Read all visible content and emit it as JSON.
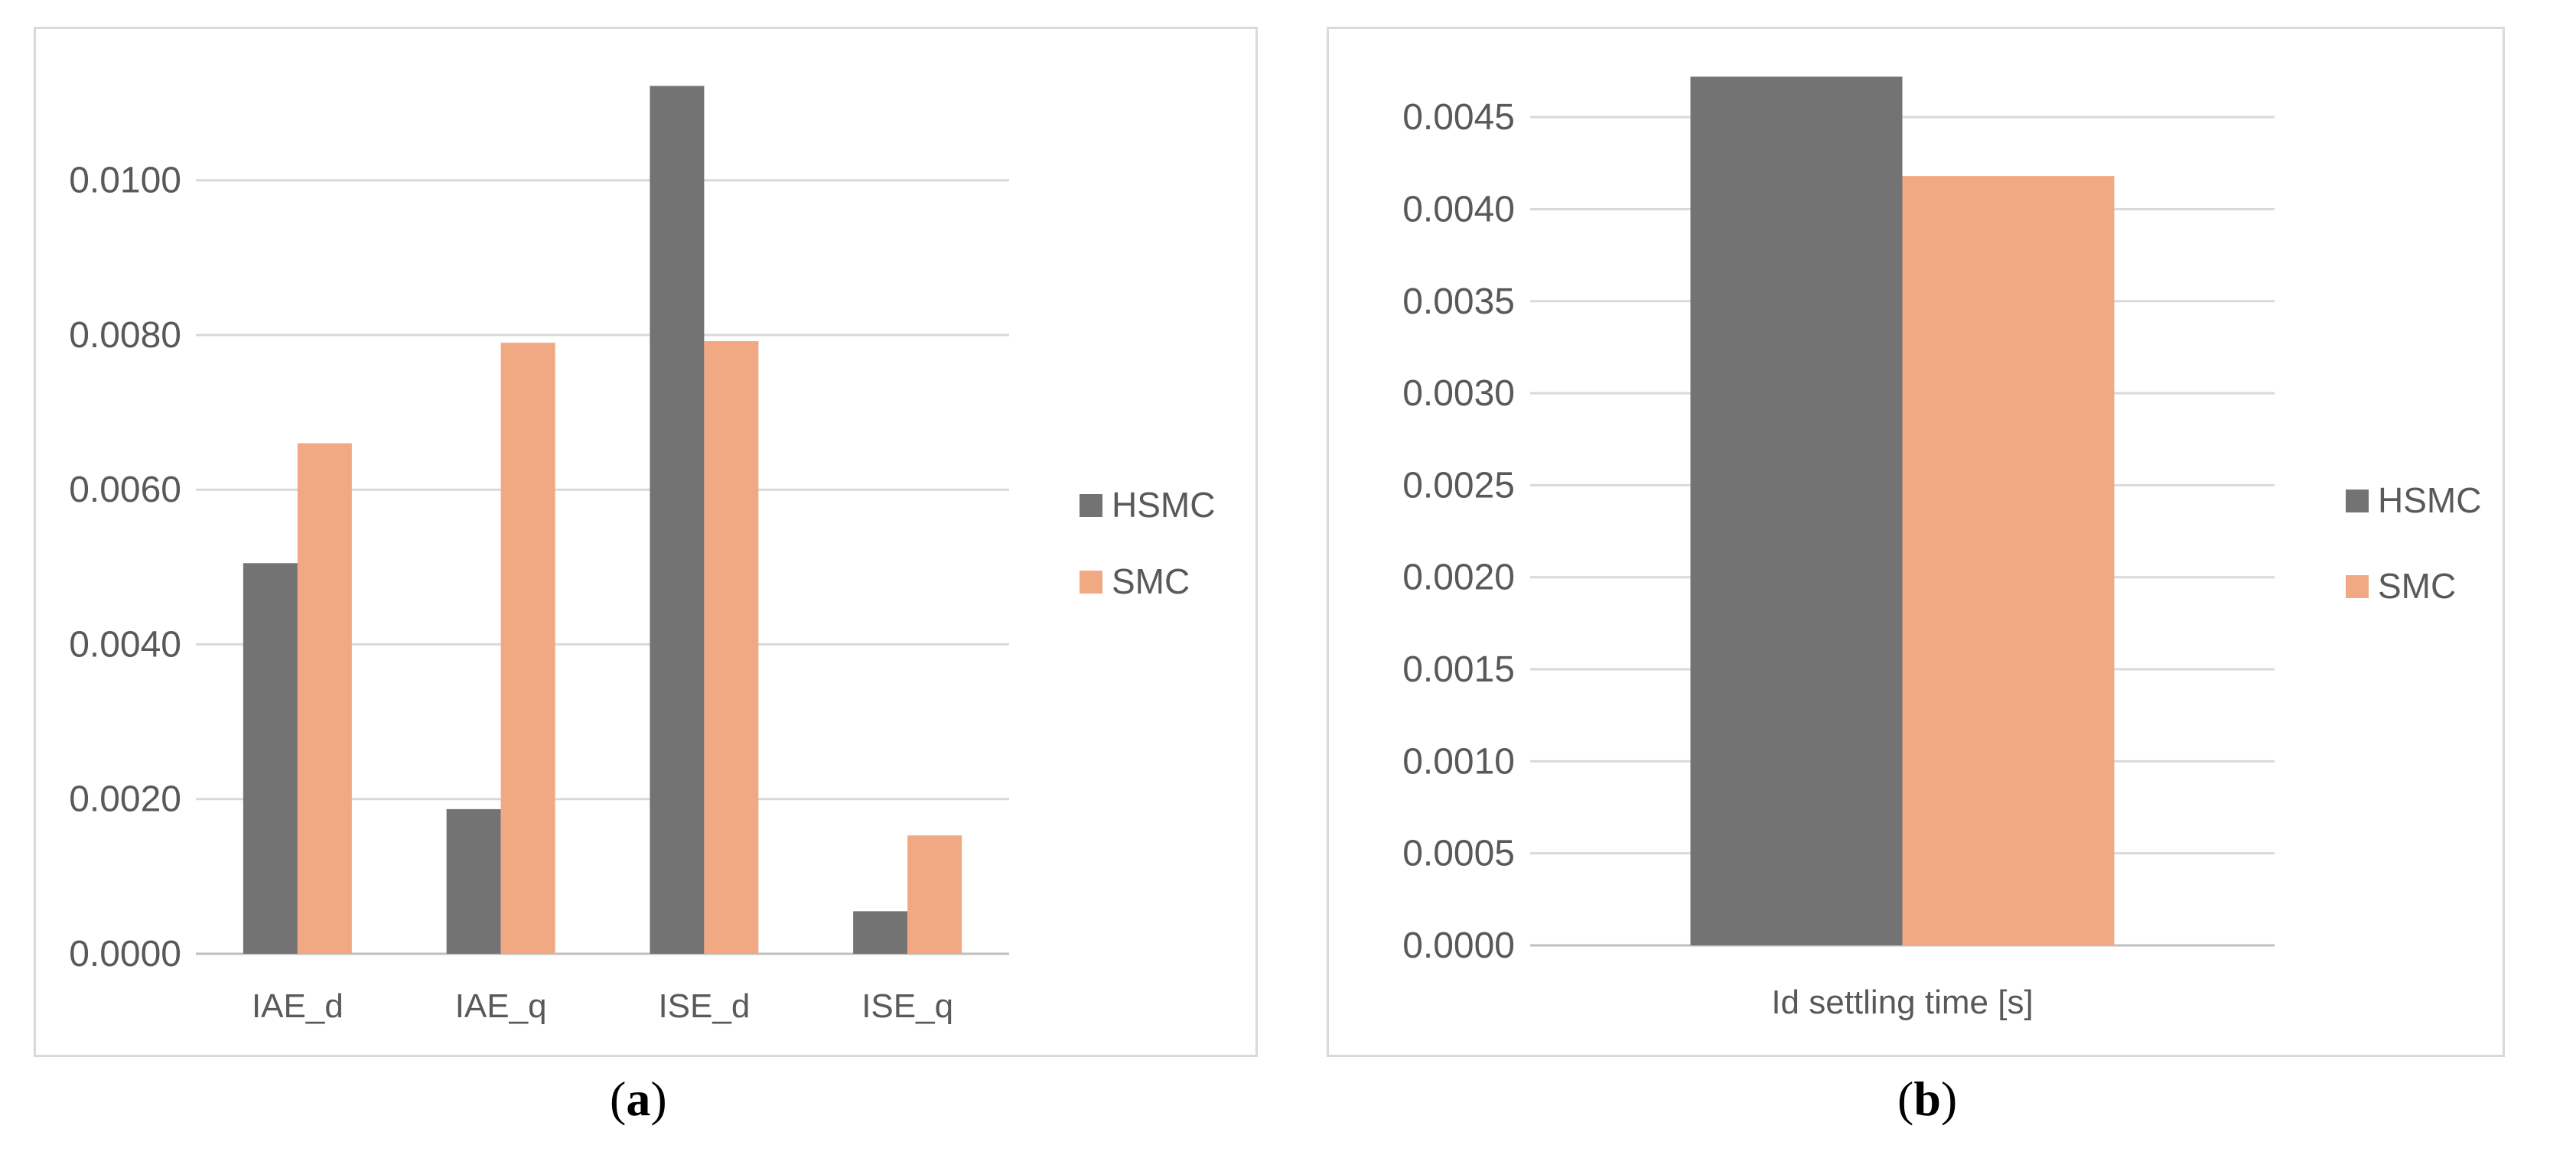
{
  "colors": {
    "HSMC": "#737373",
    "SMC": "#f1a984",
    "grid": "#d9d9d9",
    "axis": "#bfbfbf"
  },
  "captions": {
    "a_letter": "a",
    "b_letter": "b"
  },
  "chart_data": [
    {
      "type": "bar",
      "categories": [
        "IAE_d",
        "IAE_q",
        "ISE_d",
        "ISE_q"
      ],
      "series": [
        {
          "name": "HSMC",
          "values": [
            0.00505,
            0.00187,
            0.01122,
            0.00055
          ]
        },
        {
          "name": "SMC",
          "values": [
            0.0066,
            0.0079,
            0.00792,
            0.00153
          ]
        }
      ],
      "yticks": [
        "0.0000",
        "0.0020",
        "0.0040",
        "0.0060",
        "0.0080",
        "0.0100"
      ],
      "ylim": [
        0,
        0.0115
      ],
      "grid": true,
      "legend": "right"
    },
    {
      "type": "bar",
      "categories": [
        "Id settling time [s]"
      ],
      "series": [
        {
          "name": "HSMC",
          "values": [
            0.00472
          ]
        },
        {
          "name": "SMC",
          "values": [
            0.00418
          ]
        }
      ],
      "yticks": [
        "0.0000",
        "0.0005",
        "0.0010",
        "0.0015",
        "0.0020",
        "0.0025",
        "0.0030",
        "0.0035",
        "0.0040",
        "0.0045"
      ],
      "ylim": [
        0,
        0.0047
      ],
      "grid": true,
      "legend": "right"
    }
  ]
}
